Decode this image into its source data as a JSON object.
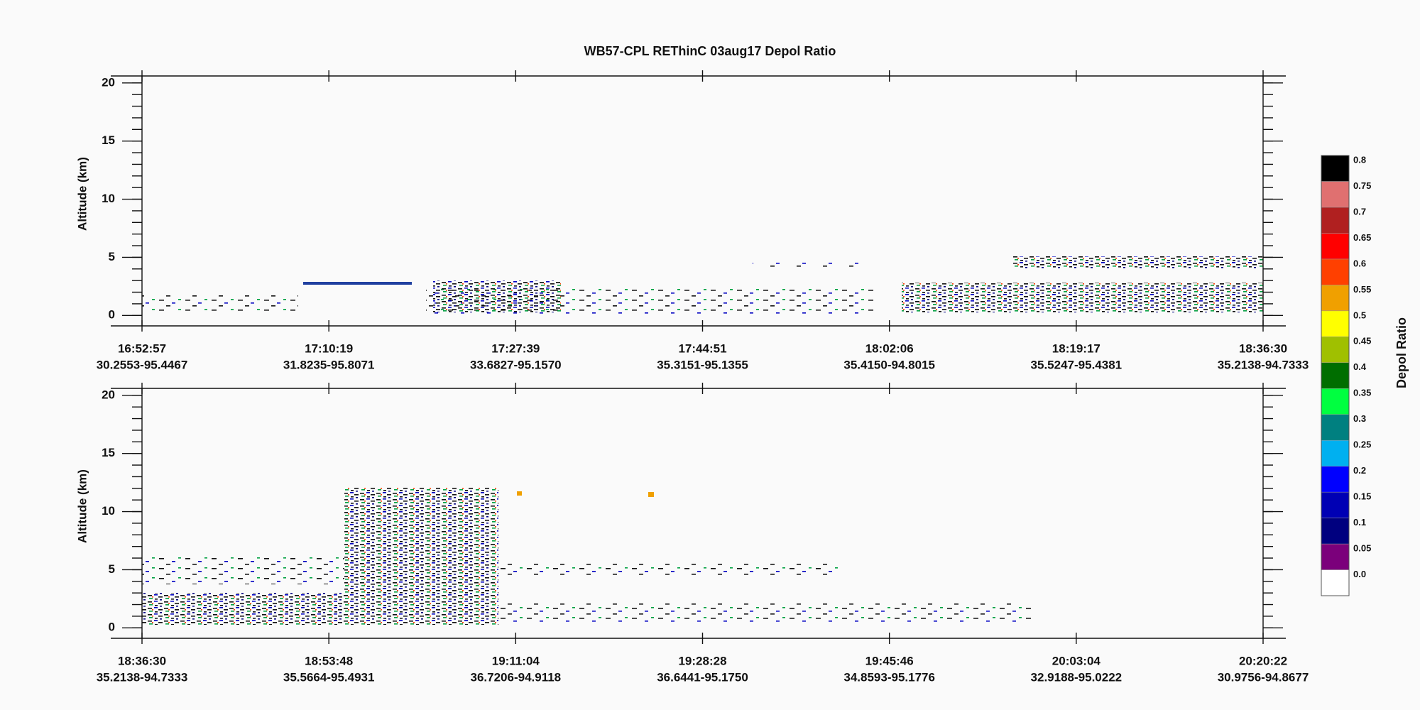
{
  "chart_data": [
    {
      "type": "curtain",
      "title": "WB57-CPL REThinC 03aug17 Depol Ratio",
      "ylabel": "Altitude (km)",
      "ylim": [
        -0.9,
        20.6
      ],
      "yticks": [
        0,
        5,
        10,
        15,
        20
      ],
      "xticks": [
        {
          "time": "16:52:57",
          "location": "30.2553-95.4467"
        },
        {
          "time": "17:10:19",
          "location": "31.8235-95.8071"
        },
        {
          "time": "17:27:39",
          "location": "33.6827-95.1570"
        },
        {
          "time": "17:44:51",
          "location": "35.3151-95.1355"
        },
        {
          "time": "18:02:06",
          "location": "35.4150-94.8015"
        },
        {
          "time": "18:19:17",
          "location": "35.5247-95.4381"
        },
        {
          "time": "18:36:30",
          "location": "35.2138-94.7333"
        }
      ]
    },
    {
      "type": "curtain",
      "ylabel": "Altitude (km)",
      "ylim": [
        -0.9,
        20.6
      ],
      "yticks": [
        0,
        5,
        10,
        15,
        20
      ],
      "xticks": [
        {
          "time": "18:36:30",
          "location": "35.2138-94.7333"
        },
        {
          "time": "18:53:48",
          "location": "35.5664-95.4931"
        },
        {
          "time": "19:11:04",
          "location": "36.7206-94.9118"
        },
        {
          "time": "19:28:28",
          "location": "36.6441-95.1750"
        },
        {
          "time": "19:45:46",
          "location": "34.8593-95.1776"
        },
        {
          "time": "20:03:04",
          "location": "32.9188-95.0222"
        },
        {
          "time": "20:20:22",
          "location": "30.9756-94.8677"
        }
      ]
    },
    {
      "type": "colorbar",
      "label": "Depol Ratio",
      "ticks": [
        {
          "value": 0,
          "label": "0.0"
        },
        0.05,
        0.1,
        0.15,
        0.2,
        0.25,
        0.3,
        0.35,
        0.4,
        0.45,
        0.5,
        0.55,
        0.6,
        0.65,
        0.7,
        0.75,
        0.8
      ],
      "colors": [
        "#ffffff",
        "#7b007b",
        "#00007f",
        "#0000b4",
        "#0000ff",
        "#00b0f0",
        "#008080",
        "#00ff40",
        "#006e00",
        "#a0c000",
        "#ffff00",
        "#f0a000",
        "#ff4000",
        "#ff0000",
        "#b02020",
        "#e07070",
        "#000000"
      ]
    }
  ]
}
